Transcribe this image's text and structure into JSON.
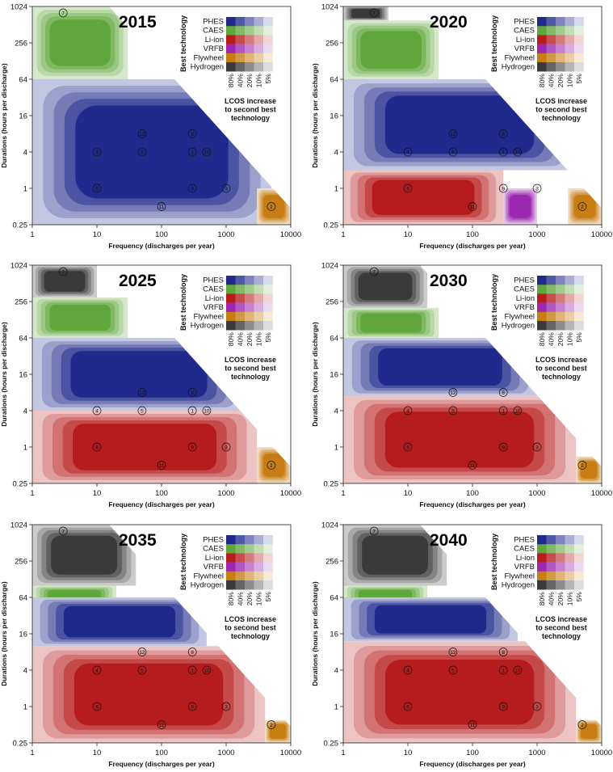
{
  "colors": {
    "PHES": "#1f2a8c",
    "CAES": "#5fa73a",
    "Li-ion": "#b71c1c",
    "VRFB": "#9c27b0",
    "Flywheel": "#c77d12",
    "Hydrogen": "#3a3a3a"
  },
  "chart_data": [
    {
      "type": "heatmap",
      "title": "2015",
      "xlabel": "Frequency (discharges per year)",
      "ylabel": "Durations (hours per discharge)",
      "x_scale": "log",
      "y_scale": "log",
      "xlim": [
        1,
        10000
      ],
      "ylim": [
        0.25,
        1024
      ],
      "x_ticks": [
        "1",
        "10",
        "100",
        "1000",
        "10000"
      ],
      "y_ticks": [
        "0.25",
        "1",
        "4",
        "16",
        "64",
        "256",
        "1024"
      ],
      "regions": [
        {
          "technology": "CAES",
          "x_range": [
            1,
            30
          ],
          "y_range": [
            64,
            1024
          ]
        },
        {
          "technology": "PHES",
          "x_range": [
            1,
            5000
          ],
          "y_range": [
            0.25,
            64
          ]
        },
        {
          "technology": "Flywheel",
          "x_range": [
            3000,
            10000
          ],
          "y_range": [
            0.25,
            1
          ]
        }
      ],
      "markers": [
        {
          "id": "7",
          "x": 3,
          "y": 800
        },
        {
          "id": "12",
          "x": 50,
          "y": 8
        },
        {
          "id": "8",
          "x": 300,
          "y": 8
        },
        {
          "id": "4",
          "x": 10,
          "y": 4
        },
        {
          "id": "5",
          "x": 50,
          "y": 4
        },
        {
          "id": "1",
          "x": 300,
          "y": 4
        },
        {
          "id": "10",
          "x": 500,
          "y": 4
        },
        {
          "id": "6",
          "x": 10,
          "y": 1
        },
        {
          "id": "9",
          "x": 300,
          "y": 1
        },
        {
          "id": "3",
          "x": 1000,
          "y": 1
        },
        {
          "id": "11",
          "x": 100,
          "y": 0.5
        },
        {
          "id": "2",
          "x": 5000,
          "y": 0.5
        }
      ]
    },
    {
      "type": "heatmap",
      "title": "2020",
      "xlabel": "Frequency (discharges per year)",
      "ylabel": "Durations (hours per discharge)",
      "x_scale": "log",
      "y_scale": "log",
      "xlim": [
        1,
        10000
      ],
      "ylim": [
        0.25,
        1024
      ],
      "x_ticks": [
        "1",
        "10",
        "100",
        "1000",
        "10000"
      ],
      "y_ticks": [
        "0.25",
        "1",
        "4",
        "16",
        "64",
        "256",
        "1024"
      ],
      "regions": [
        {
          "technology": "Hydrogen",
          "x_range": [
            1,
            5
          ],
          "y_range": [
            600,
            1024
          ]
        },
        {
          "technology": "CAES",
          "x_range": [
            1,
            30
          ],
          "y_range": [
            64,
            600
          ]
        },
        {
          "technology": "PHES",
          "x_range": [
            1,
            4000
          ],
          "y_range": [
            2,
            64
          ]
        },
        {
          "technology": "Li-ion",
          "x_range": [
            1,
            300
          ],
          "y_range": [
            0.25,
            2
          ]
        },
        {
          "technology": "VRFB",
          "x_range": [
            300,
            1000
          ],
          "y_range": [
            0.25,
            1
          ]
        },
        {
          "technology": "Flywheel",
          "x_range": [
            3000,
            10000
          ],
          "y_range": [
            0.25,
            1
          ]
        }
      ],
      "markers": [
        {
          "id": "7",
          "x": 3,
          "y": 800
        },
        {
          "id": "12",
          "x": 50,
          "y": 8
        },
        {
          "id": "8",
          "x": 300,
          "y": 8
        },
        {
          "id": "4",
          "x": 10,
          "y": 4
        },
        {
          "id": "5",
          "x": 50,
          "y": 4
        },
        {
          "id": "1",
          "x": 300,
          "y": 4
        },
        {
          "id": "10",
          "x": 500,
          "y": 4
        },
        {
          "id": "6",
          "x": 10,
          "y": 1
        },
        {
          "id": "9",
          "x": 300,
          "y": 1
        },
        {
          "id": "3",
          "x": 1000,
          "y": 1
        },
        {
          "id": "11",
          "x": 100,
          "y": 0.5
        },
        {
          "id": "2",
          "x": 5000,
          "y": 0.5
        }
      ]
    },
    {
      "type": "heatmap",
      "title": "2025",
      "xlabel": "Frequency (discharges per year)",
      "ylabel": "Durations (hours per discharge)",
      "x_scale": "log",
      "y_scale": "log",
      "xlim": [
        1,
        10000
      ],
      "ylim": [
        0.25,
        1024
      ],
      "x_ticks": [
        "1",
        "10",
        "100",
        "1000",
        "10000"
      ],
      "y_ticks": [
        "0.25",
        "1",
        "4",
        "16",
        "64",
        "256",
        "1024"
      ],
      "regions": [
        {
          "technology": "Hydrogen",
          "x_range": [
            1,
            10
          ],
          "y_range": [
            300,
            1024
          ]
        },
        {
          "technology": "CAES",
          "x_range": [
            1,
            30
          ],
          "y_range": [
            64,
            300
          ]
        },
        {
          "technology": "PHES",
          "x_range": [
            1,
            2000
          ],
          "y_range": [
            4,
            64
          ]
        },
        {
          "technology": "Li-ion",
          "x_range": [
            1,
            3000
          ],
          "y_range": [
            0.25,
            4
          ]
        },
        {
          "technology": "Flywheel",
          "x_range": [
            3000,
            10000
          ],
          "y_range": [
            0.25,
            1
          ]
        }
      ],
      "markers": [
        {
          "id": "7",
          "x": 3,
          "y": 800
        },
        {
          "id": "12",
          "x": 50,
          "y": 8
        },
        {
          "id": "8",
          "x": 300,
          "y": 8
        },
        {
          "id": "4",
          "x": 10,
          "y": 4
        },
        {
          "id": "5",
          "x": 50,
          "y": 4
        },
        {
          "id": "1",
          "x": 300,
          "y": 4
        },
        {
          "id": "10",
          "x": 500,
          "y": 4
        },
        {
          "id": "6",
          "x": 10,
          "y": 1
        },
        {
          "id": "9",
          "x": 300,
          "y": 1
        },
        {
          "id": "3",
          "x": 1000,
          "y": 1
        },
        {
          "id": "11",
          "x": 100,
          "y": 0.5
        },
        {
          "id": "2",
          "x": 5000,
          "y": 0.5
        }
      ]
    },
    {
      "type": "heatmap",
      "title": "2030",
      "xlabel": "Frequency (discharges per year)",
      "ylabel": "Durations (hours per discharge)",
      "x_scale": "log",
      "y_scale": "log",
      "xlim": [
        1,
        10000
      ],
      "ylim": [
        0.25,
        1024
      ],
      "x_ticks": [
        "1",
        "10",
        "100",
        "1000",
        "10000"
      ],
      "y_ticks": [
        "0.25",
        "1",
        "4",
        "16",
        "64",
        "256",
        "1024"
      ],
      "regions": [
        {
          "technology": "Hydrogen",
          "x_range": [
            1,
            20
          ],
          "y_range": [
            200,
            1024
          ]
        },
        {
          "technology": "CAES",
          "x_range": [
            1,
            30
          ],
          "y_range": [
            64,
            200
          ]
        },
        {
          "technology": "PHES",
          "x_range": [
            1,
            1000
          ],
          "y_range": [
            7,
            64
          ]
        },
        {
          "technology": "Li-ion",
          "x_range": [
            1,
            4000
          ],
          "y_range": [
            0.25,
            7
          ]
        },
        {
          "technology": "Flywheel",
          "x_range": [
            4000,
            10000
          ],
          "y_range": [
            0.25,
            0.7
          ]
        }
      ],
      "markers": [
        {
          "id": "7",
          "x": 3,
          "y": 800
        },
        {
          "id": "12",
          "x": 50,
          "y": 8
        },
        {
          "id": "8",
          "x": 300,
          "y": 8
        },
        {
          "id": "4",
          "x": 10,
          "y": 4
        },
        {
          "id": "5",
          "x": 50,
          "y": 4
        },
        {
          "id": "1",
          "x": 300,
          "y": 4
        },
        {
          "id": "10",
          "x": 500,
          "y": 4
        },
        {
          "id": "6",
          "x": 10,
          "y": 1
        },
        {
          "id": "9",
          "x": 300,
          "y": 1
        },
        {
          "id": "3",
          "x": 1000,
          "y": 1
        },
        {
          "id": "11",
          "x": 100,
          "y": 0.5
        },
        {
          "id": "2",
          "x": 5000,
          "y": 0.5
        }
      ]
    },
    {
      "type": "heatmap",
      "title": "2035",
      "xlabel": "Frequency (discharges per year)",
      "ylabel": "Durations (hours per discharge)",
      "x_scale": "log",
      "y_scale": "log",
      "xlim": [
        1,
        10000
      ],
      "ylim": [
        0.25,
        1024
      ],
      "x_ticks": [
        "1",
        "10",
        "100",
        "1000",
        "10000"
      ],
      "y_ticks": [
        "0.25",
        "1",
        "4",
        "16",
        "64",
        "256",
        "1024"
      ],
      "regions": [
        {
          "technology": "Hydrogen",
          "x_range": [
            1,
            40
          ],
          "y_range": [
            100,
            1024
          ]
        },
        {
          "technology": "CAES",
          "x_range": [
            1,
            20
          ],
          "y_range": [
            40,
            100
          ]
        },
        {
          "technology": "PHES",
          "x_range": [
            1,
            500
          ],
          "y_range": [
            10,
            64
          ]
        },
        {
          "technology": "Li-ion",
          "x_range": [
            1,
            4000
          ],
          "y_range": [
            0.25,
            10
          ]
        },
        {
          "technology": "Flywheel",
          "x_range": [
            4000,
            10000
          ],
          "y_range": [
            0.25,
            0.6
          ]
        }
      ],
      "markers": [
        {
          "id": "7",
          "x": 3,
          "y": 800
        },
        {
          "id": "12",
          "x": 50,
          "y": 8
        },
        {
          "id": "8",
          "x": 300,
          "y": 8
        },
        {
          "id": "4",
          "x": 10,
          "y": 4
        },
        {
          "id": "5",
          "x": 50,
          "y": 4
        },
        {
          "id": "1",
          "x": 300,
          "y": 4
        },
        {
          "id": "10",
          "x": 500,
          "y": 4
        },
        {
          "id": "6",
          "x": 10,
          "y": 1
        },
        {
          "id": "9",
          "x": 300,
          "y": 1
        },
        {
          "id": "3",
          "x": 1000,
          "y": 1
        },
        {
          "id": "11",
          "x": 100,
          "y": 0.5
        },
        {
          "id": "2",
          "x": 5000,
          "y": 0.5
        }
      ]
    },
    {
      "type": "heatmap",
      "title": "2040",
      "xlabel": "Frequency (discharges per year)",
      "ylabel": "Durations (hours per discharge)",
      "x_scale": "log",
      "y_scale": "log",
      "xlim": [
        1,
        10000
      ],
      "ylim": [
        0.25,
        1024
      ],
      "x_ticks": [
        "1",
        "10",
        "100",
        "1000",
        "10000"
      ],
      "y_ticks": [
        "0.25",
        "1",
        "4",
        "16",
        "64",
        "256",
        "1024"
      ],
      "regions": [
        {
          "technology": "Hydrogen",
          "x_range": [
            1,
            40
          ],
          "y_range": [
            100,
            1024
          ]
        },
        {
          "technology": "CAES",
          "x_range": [
            1,
            20
          ],
          "y_range": [
            40,
            100
          ]
        },
        {
          "technology": "PHES",
          "x_range": [
            1,
            500
          ],
          "y_range": [
            12,
            64
          ]
        },
        {
          "technology": "Li-ion",
          "x_range": [
            1,
            4000
          ],
          "y_range": [
            0.25,
            12
          ]
        },
        {
          "technology": "Flywheel",
          "x_range": [
            4000,
            10000
          ],
          "y_range": [
            0.25,
            0.6
          ]
        }
      ],
      "markers": [
        {
          "id": "7",
          "x": 3,
          "y": 800
        },
        {
          "id": "12",
          "x": 50,
          "y": 8
        },
        {
          "id": "8",
          "x": 300,
          "y": 8
        },
        {
          "id": "4",
          "x": 10,
          "y": 4
        },
        {
          "id": "5",
          "x": 50,
          "y": 4
        },
        {
          "id": "1",
          "x": 300,
          "y": 4
        },
        {
          "id": "10",
          "x": 500,
          "y": 4
        },
        {
          "id": "6",
          "x": 10,
          "y": 1
        },
        {
          "id": "9",
          "x": 300,
          "y": 1
        },
        {
          "id": "3",
          "x": 1000,
          "y": 1
        },
        {
          "id": "11",
          "x": 100,
          "y": 0.5
        },
        {
          "id": "2",
          "x": 5000,
          "y": 0.5
        }
      ]
    }
  ],
  "legend": {
    "title_vertical": "Best technology",
    "technologies": [
      "PHES",
      "CAES",
      "Li-ion",
      "VRFB",
      "Flywheel",
      "Hydrogen"
    ],
    "percent_labels": [
      "80%",
      "40%",
      "20%",
      "10%",
      "5%"
    ],
    "caption_lines": [
      "LCOS increase",
      "to second best",
      "technology"
    ]
  }
}
